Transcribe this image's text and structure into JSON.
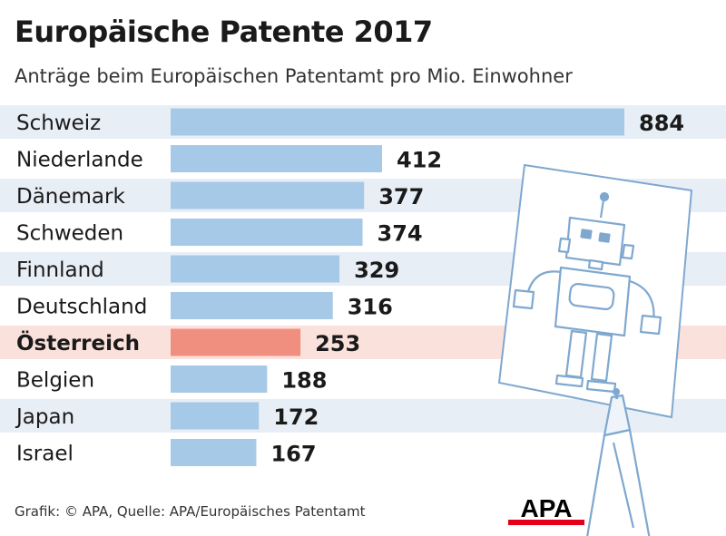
{
  "header": {
    "title": "Europäische Patente 2017",
    "subtitle": "Anträge beim Europäischen Patentamt pro Mio. Einwohner"
  },
  "footer": {
    "source": "Grafik: © APA, Quelle: APA/Europäisches Patentamt",
    "logo_text": "APA"
  },
  "colors": {
    "bar": "#a7c9e8",
    "highlight_bar": "#f08f7f",
    "stripe": "#e8eef6",
    "highlight_stripe": "#fbe1dc",
    "logo_red": "#e2001a"
  },
  "chart_data": {
    "type": "bar",
    "orientation": "horizontal",
    "categories": [
      "Schweiz",
      "Niederlande",
      "Dänemark",
      "Schweden",
      "Finnland",
      "Deutschland",
      "Österreich",
      "Belgien",
      "Japan",
      "Israel"
    ],
    "values": [
      884,
      412,
      377,
      374,
      329,
      316,
      253,
      188,
      172,
      167
    ],
    "value_labels": [
      "884",
      "412",
      "377",
      "374",
      "329",
      "316",
      "253",
      "188",
      "172",
      "167"
    ],
    "highlight": "Österreich",
    "xlim": [
      0,
      884
    ],
    "grid": false
  }
}
